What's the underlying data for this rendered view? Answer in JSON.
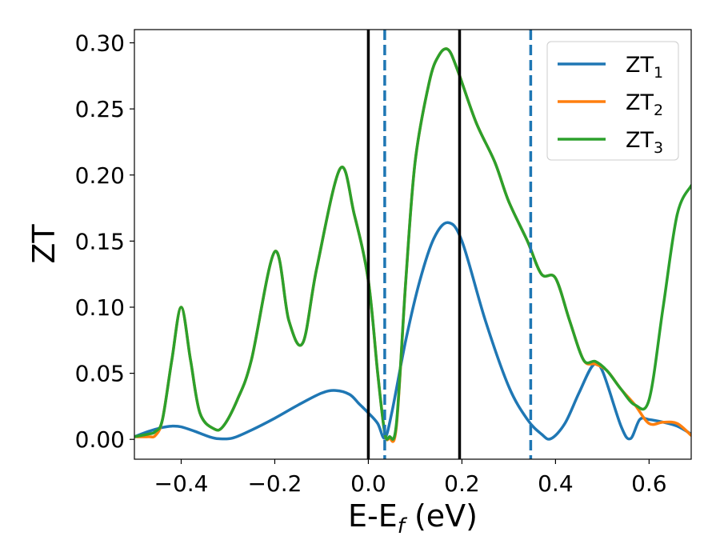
{
  "chart_data": {
    "type": "line",
    "xlabel": {
      "main": "E-E",
      "sub": "f",
      "unit": " (eV)"
    },
    "ylabel": "ZT",
    "xlim": [
      -0.5,
      0.69
    ],
    "ylim": [
      -0.015,
      0.31
    ],
    "x_ticks": [
      {
        "value": -0.4,
        "label": "−0.4"
      },
      {
        "value": -0.2,
        "label": "−0.2"
      },
      {
        "value": 0.0,
        "label": "0.0"
      },
      {
        "value": 0.2,
        "label": "0.2"
      },
      {
        "value": 0.4,
        "label": "0.4"
      },
      {
        "value": 0.6,
        "label": "0.6"
      }
    ],
    "y_ticks": [
      {
        "value": 0.0,
        "label": "0.00"
      },
      {
        "value": 0.05,
        "label": "0.05"
      },
      {
        "value": 0.1,
        "label": "0.10"
      },
      {
        "value": 0.15,
        "label": "0.15"
      },
      {
        "value": 0.2,
        "label": "0.20"
      },
      {
        "value": 0.25,
        "label": "0.25"
      },
      {
        "value": 0.3,
        "label": "0.30"
      }
    ],
    "grid": false,
    "legend": "top-right",
    "vlines": [
      {
        "x": 0.0,
        "color": "#000000",
        "style": "solid"
      },
      {
        "x": 0.195,
        "color": "#000000",
        "style": "solid"
      },
      {
        "x": 0.035,
        "color": "#1f77b4",
        "style": "dashed"
      },
      {
        "x": 0.347,
        "color": "#1f77b4",
        "style": "dashed"
      }
    ],
    "series": [
      {
        "name": "ZT",
        "subscript": "1",
        "color": "#1f77b4",
        "x": [
          -0.5,
          -0.47,
          -0.44,
          -0.42,
          -0.4,
          -0.37,
          -0.34,
          -0.32,
          -0.29,
          -0.25,
          -0.2,
          -0.15,
          -0.1,
          -0.07,
          -0.04,
          -0.02,
          0.0,
          0.02,
          0.035,
          0.05,
          0.08,
          0.11,
          0.14,
          0.17,
          0.2,
          0.25,
          0.3,
          0.34,
          0.37,
          0.39,
          0.42,
          0.45,
          0.48,
          0.5,
          0.54,
          0.56,
          0.58,
          0.6,
          0.63,
          0.66,
          0.69
        ],
        "values": [
          0.002,
          0.006,
          0.009,
          0.01,
          0.0095,
          0.006,
          0.002,
          0.0005,
          0.001,
          0.007,
          0.016,
          0.026,
          0.035,
          0.037,
          0.034,
          0.027,
          0.02,
          0.012,
          0.001,
          0.02,
          0.075,
          0.12,
          0.152,
          0.164,
          0.15,
          0.09,
          0.04,
          0.015,
          0.004,
          0.0005,
          0.012,
          0.035,
          0.056,
          0.052,
          0.01,
          0.0005,
          0.015,
          0.015,
          0.013,
          0.01,
          0.004
        ]
      },
      {
        "name": "ZT",
        "subscript": "2",
        "color": "#ff7f0e",
        "x": [
          -0.5,
          -0.47,
          -0.455,
          -0.44,
          -0.42,
          -0.4,
          -0.38,
          -0.36,
          -0.33,
          -0.31,
          -0.28,
          -0.25,
          -0.2,
          -0.17,
          -0.14,
          -0.11,
          -0.06,
          -0.03,
          0.0,
          0.02,
          0.035,
          0.045,
          0.06,
          0.08,
          0.1,
          0.13,
          0.15,
          0.17,
          0.19,
          0.23,
          0.27,
          0.3,
          0.34,
          0.37,
          0.4,
          0.43,
          0.46,
          0.485,
          0.51,
          0.54,
          0.57,
          0.6,
          0.63,
          0.66,
          0.69
        ],
        "values": [
          0.002,
          0.002,
          0.003,
          0.015,
          0.06,
          0.1,
          0.06,
          0.02,
          0.008,
          0.01,
          0.03,
          0.06,
          0.142,
          0.09,
          0.073,
          0.13,
          0.205,
          0.17,
          0.12,
          0.05,
          0.005,
          0.001,
          0.01,
          0.12,
          0.21,
          0.27,
          0.29,
          0.295,
          0.28,
          0.24,
          0.21,
          0.18,
          0.15,
          0.125,
          0.122,
          0.09,
          0.06,
          0.057,
          0.052,
          0.038,
          0.026,
          0.012,
          0.013,
          0.012,
          0.003
        ]
      },
      {
        "name": "ZT",
        "subscript": "3",
        "color": "#2ca02c",
        "x": [
          -0.5,
          -0.47,
          -0.455,
          -0.44,
          -0.42,
          -0.4,
          -0.38,
          -0.36,
          -0.33,
          -0.31,
          -0.28,
          -0.25,
          -0.2,
          -0.17,
          -0.14,
          -0.11,
          -0.06,
          -0.03,
          0.0,
          0.02,
          0.035,
          0.045,
          0.06,
          0.08,
          0.1,
          0.13,
          0.15,
          0.17,
          0.19,
          0.23,
          0.27,
          0.3,
          0.34,
          0.37,
          0.4,
          0.43,
          0.46,
          0.485,
          0.51,
          0.54,
          0.57,
          0.6,
          0.63,
          0.66,
          0.69
        ],
        "values": [
          0.002,
          0.004,
          0.006,
          0.015,
          0.06,
          0.1,
          0.06,
          0.02,
          0.008,
          0.01,
          0.03,
          0.06,
          0.142,
          0.09,
          0.073,
          0.13,
          0.205,
          0.17,
          0.12,
          0.05,
          0.005,
          0.002,
          0.012,
          0.12,
          0.21,
          0.27,
          0.29,
          0.295,
          0.28,
          0.24,
          0.21,
          0.18,
          0.15,
          0.125,
          0.122,
          0.09,
          0.06,
          0.059,
          0.052,
          0.038,
          0.026,
          0.03,
          0.1,
          0.17,
          0.192
        ]
      }
    ]
  }
}
